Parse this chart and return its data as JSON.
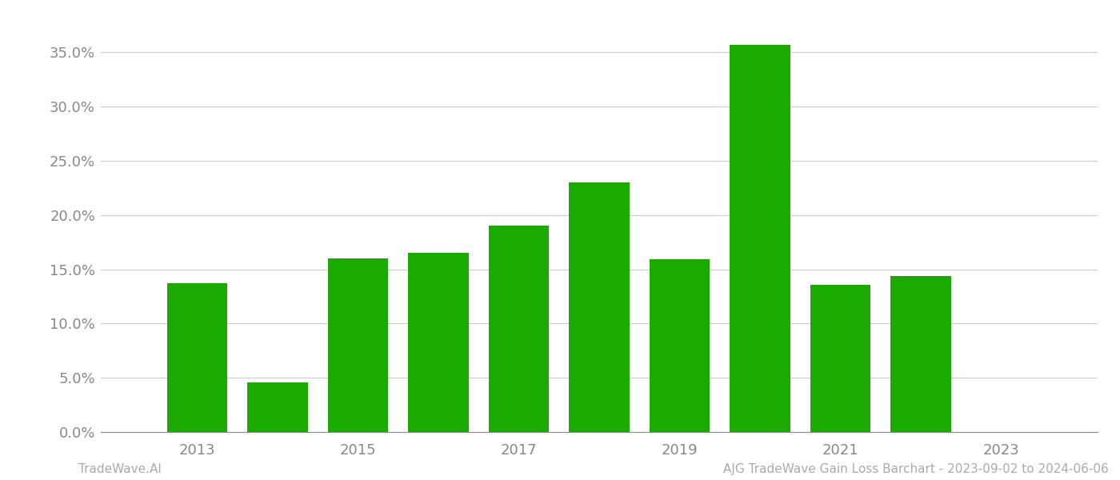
{
  "years": [
    2013,
    2014,
    2015,
    2016,
    2017,
    2018,
    2019,
    2020,
    2021,
    2022
  ],
  "values": [
    0.137,
    0.046,
    0.16,
    0.165,
    0.19,
    0.23,
    0.159,
    0.357,
    0.136,
    0.144
  ],
  "bar_color": "#1aaa00",
  "background_color": "#ffffff",
  "grid_color": "#cccccc",
  "axis_color": "#888888",
  "ylabel_ticks": [
    0.0,
    0.05,
    0.1,
    0.15,
    0.2,
    0.25,
    0.3,
    0.35
  ],
  "xlabel_ticks": [
    2013,
    2015,
    2017,
    2019,
    2021,
    2023
  ],
  "ylim": [
    0.0,
    0.385
  ],
  "xlim_left": 2011.8,
  "xlim_right": 2024.2,
  "bar_width": 0.75,
  "footer_left": "TradeWave.AI",
  "footer_right": "AJG TradeWave Gain Loss Barchart - 2023-09-02 to 2024-06-06",
  "footer_color": "#aaaaaa",
  "footer_fontsize": 11,
  "tick_fontsize": 13,
  "fig_width": 14.0,
  "fig_height": 6.0,
  "dpi": 100
}
